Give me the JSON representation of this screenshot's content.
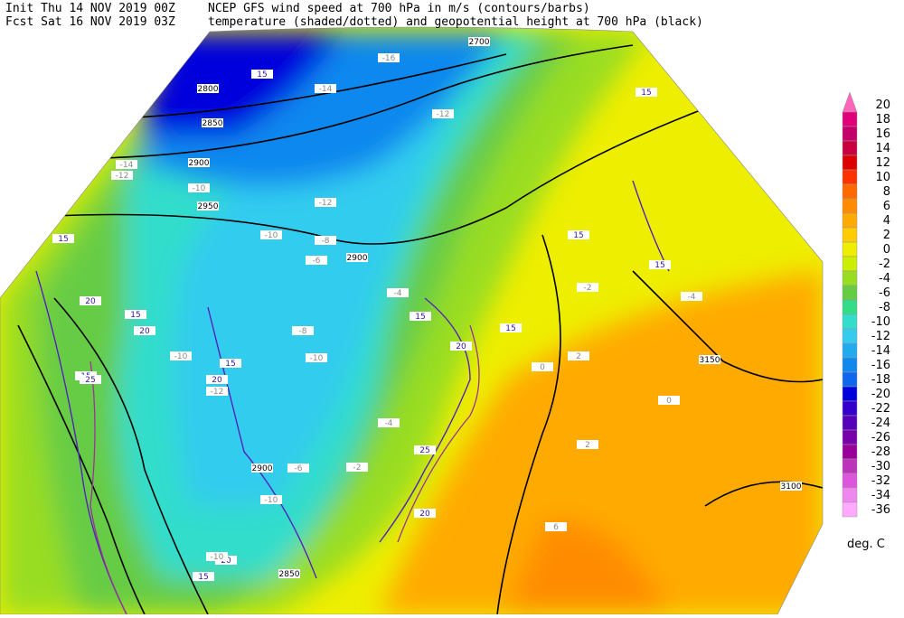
{
  "header": {
    "init": "Init  Thu 14 NOV 2019 00Z",
    "fcst": "Fcst Sat 16 NOV 2019 03Z",
    "title1": "NCEP GFS wind speed at 700 hPa in m/s (contours/barbs)",
    "title2": "temperature (shaded/dotted) and geopotential height at 700 hPa (black)"
  },
  "colorbar": {
    "labels": [
      20,
      18,
      16,
      14,
      12,
      10,
      8,
      6,
      4,
      2,
      0,
      -2,
      -4,
      -6,
      -8,
      -10,
      -12,
      -14,
      -16,
      -18,
      -20,
      -22,
      -24,
      -26,
      -28,
      -30,
      -32,
      -34,
      -36
    ],
    "colors": [
      "#ff66bb",
      "#e0007a",
      "#c4006a",
      "#c80040",
      "#dd0000",
      "#ff3300",
      "#ff6a00",
      "#ff8c00",
      "#ffaa00",
      "#ffcc00",
      "#f0ee00",
      "#ccee00",
      "#99dd22",
      "#66cc44",
      "#33dd88",
      "#33ddcc",
      "#33ccee",
      "#22aaee",
      "#1188ee",
      "#1166ee",
      "#0000dd",
      "#3300cc",
      "#5500bb",
      "#7700aa",
      "#990099",
      "#bb33bb",
      "#dd55dd",
      "#ee88ee",
      "#ffaaff"
    ],
    "units": "deg. C"
  },
  "map_labels": {
    "heights": [
      "2800",
      "2850",
      "2900",
      "2950",
      "2900",
      "2900",
      "3150",
      "3100",
      "2850",
      "2700"
    ],
    "wind": [
      "15",
      "15",
      "20",
      "15",
      "20",
      "15",
      "20",
      "25",
      "15",
      "20",
      "15",
      "25",
      "15",
      "20",
      "15",
      "15",
      "15",
      "15",
      "20"
    ],
    "temps": [
      "-16",
      "-14",
      "-12",
      "-10",
      "-12",
      "-10",
      "-8",
      "-6",
      "-4",
      "-10",
      "-12",
      "-10",
      "-8",
      "-10",
      "-6",
      "-4",
      "-2",
      "-2",
      "-4",
      "0",
      "2",
      "0",
      "2",
      "6",
      "-14",
      "-12",
      "-10"
    ]
  }
}
